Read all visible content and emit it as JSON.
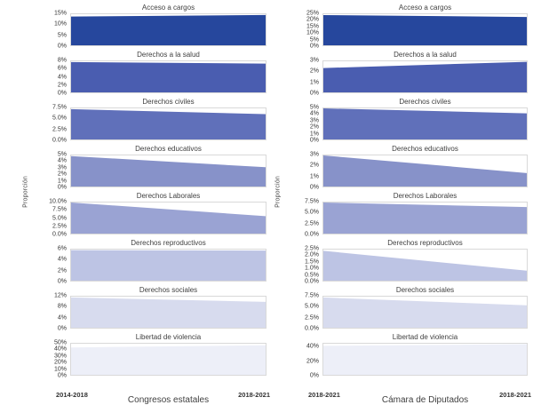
{
  "chart_data": {
    "type": "area",
    "description": "Small-multiple area charts of proportion of initiatives by rights topic, two legislature columns",
    "ylabel": "Proporción",
    "columns": [
      {
        "title": "Congresos estatales",
        "x_labels": [
          "2014-2018",
          "2018-2021"
        ],
        "ylabel": "Proporción",
        "panels": [
          {
            "title": "Acceso a cargos",
            "ylim": [
              0,
              15
            ],
            "yticks": [
              {
                "label": "15%",
                "value": 15
              },
              {
                "label": "10%",
                "value": 10
              },
              {
                "label": "5%",
                "value": 5
              },
              {
                "label": "0%",
                "value": 0
              }
            ],
            "values": [
              13.9,
              14.6
            ],
            "color": "#26479D"
          },
          {
            "title": "Derechos a la salud",
            "ylim": [
              0,
              8
            ],
            "yticks": [
              {
                "label": "8%",
                "value": 8
              },
              {
                "label": "6%",
                "value": 6
              },
              {
                "label": "4%",
                "value": 4
              },
              {
                "label": "2%",
                "value": 2
              },
              {
                "label": "0%",
                "value": 0
              }
            ],
            "values": [
              7.8,
              7.4
            ],
            "color": "#4A5DB0"
          },
          {
            "title": "Derechos civiles",
            "ylim": [
              0,
              7.5
            ],
            "yticks": [
              {
                "label": "7.5%",
                "value": 7.5
              },
              {
                "label": "5.0%",
                "value": 5
              },
              {
                "label": "2.5%",
                "value": 2.5
              },
              {
                "label": "0.0%",
                "value": 0
              }
            ],
            "values": [
              7.3,
              6.1
            ],
            "color": "#6070BA"
          },
          {
            "title": "Derechos educativos",
            "ylim": [
              0,
              5
            ],
            "yticks": [
              {
                "label": "5%",
                "value": 5
              },
              {
                "label": "4%",
                "value": 4
              },
              {
                "label": "3%",
                "value": 3
              },
              {
                "label": "2%",
                "value": 2
              },
              {
                "label": "1%",
                "value": 1
              },
              {
                "label": "0%",
                "value": 0
              }
            ],
            "values": [
              4.9,
              3.1
            ],
            "color": "#8792C9"
          },
          {
            "title": "Derechos Laborales",
            "ylim": [
              0,
              10
            ],
            "yticks": [
              {
                "label": "10.0%",
                "value": 10
              },
              {
                "label": "7.5%",
                "value": 7.5
              },
              {
                "label": "5.0%",
                "value": 5
              },
              {
                "label": "2.5%",
                "value": 2.5
              },
              {
                "label": "0.0%",
                "value": 0
              }
            ],
            "values": [
              10.0,
              5.6
            ],
            "color": "#9AA3D3"
          },
          {
            "title": "Derechos reproductivos",
            "ylim": [
              0,
              6
            ],
            "yticks": [
              {
                "label": "6%",
                "value": 6
              },
              {
                "label": "4%",
                "value": 4
              },
              {
                "label": "2%",
                "value": 2
              },
              {
                "label": "0%",
                "value": 0
              }
            ],
            "values": [
              5.9,
              5.8
            ],
            "color": "#BDC4E4"
          },
          {
            "title": "Derechos sociales",
            "ylim": [
              0,
              12
            ],
            "yticks": [
              {
                "label": "12%",
                "value": 12
              },
              {
                "label": "8%",
                "value": 8
              },
              {
                "label": "4%",
                "value": 4
              },
              {
                "label": "0%",
                "value": 0
              }
            ],
            "values": [
              11.7,
              10.0
            ],
            "color": "#D7DBEE"
          },
          {
            "title": "Libertad de violencia",
            "ylim": [
              0,
              50
            ],
            "yticks": [
              {
                "label": "50%",
                "value": 50
              },
              {
                "label": "40%",
                "value": 40
              },
              {
                "label": "30%",
                "value": 30
              },
              {
                "label": "20%",
                "value": 20
              },
              {
                "label": "10%",
                "value": 10
              },
              {
                "label": "0%",
                "value": 0
              }
            ],
            "values": [
              44.0,
              47.5
            ],
            "color": "#EDEFF8"
          }
        ]
      },
      {
        "title": "Cámara de Diputados",
        "x_labels": [
          "2018-2021",
          "2018-2021"
        ],
        "ylabel": "Proporción",
        "panels": [
          {
            "title": "Acceso a cargos",
            "ylim": [
              0,
              25
            ],
            "yticks": [
              {
                "label": "25%",
                "value": 25
              },
              {
                "label": "20%",
                "value": 20
              },
              {
                "label": "15%",
                "value": 15
              },
              {
                "label": "10%",
                "value": 10
              },
              {
                "label": "5%",
                "value": 5
              },
              {
                "label": "0%",
                "value": 0
              }
            ],
            "values": [
              24.3,
              22.8
            ],
            "color": "#26479D"
          },
          {
            "title": "Derechos a la salud",
            "ylim": [
              0,
              3
            ],
            "yticks": [
              {
                "label": "3%",
                "value": 3
              },
              {
                "label": "2%",
                "value": 2
              },
              {
                "label": "1%",
                "value": 1
              },
              {
                "label": "0%",
                "value": 0
              }
            ],
            "values": [
              2.35,
              2.95
            ],
            "color": "#4A5DB0"
          },
          {
            "title": "Derechos civiles",
            "ylim": [
              0,
              5
            ],
            "yticks": [
              {
                "label": "5%",
                "value": 5
              },
              {
                "label": "4%",
                "value": 4
              },
              {
                "label": "3%",
                "value": 3
              },
              {
                "label": "2%",
                "value": 2
              },
              {
                "label": "1%",
                "value": 1
              },
              {
                "label": "0%",
                "value": 0
              }
            ],
            "values": [
              5.0,
              4.2
            ],
            "color": "#6070BA"
          },
          {
            "title": "Derechos educativos",
            "ylim": [
              0,
              3
            ],
            "yticks": [
              {
                "label": "3%",
                "value": 3
              },
              {
                "label": "2%",
                "value": 2
              },
              {
                "label": "1%",
                "value": 1
              },
              {
                "label": "0%",
                "value": 0
              }
            ],
            "values": [
              3.0,
              1.3
            ],
            "color": "#8792C9"
          },
          {
            "title": "Derechos Laborales",
            "ylim": [
              0,
              7.5
            ],
            "yticks": [
              {
                "label": "7.5%",
                "value": 7.5
              },
              {
                "label": "5.0%",
                "value": 5
              },
              {
                "label": "2.5%",
                "value": 2.5
              },
              {
                "label": "0.0%",
                "value": 0
              }
            ],
            "values": [
              7.5,
              6.4
            ],
            "color": "#9AA3D3"
          },
          {
            "title": "Derechos reproductivos",
            "ylim": [
              0,
              2.5
            ],
            "yticks": [
              {
                "label": "2.5%",
                "value": 2.5
              },
              {
                "label": "2.0%",
                "value": 2
              },
              {
                "label": "1.5%",
                "value": 1.5
              },
              {
                "label": "1.0%",
                "value": 1
              },
              {
                "label": "0.5%",
                "value": 0.5
              },
              {
                "label": "0.0%",
                "value": 0
              }
            ],
            "values": [
              2.4,
              0.8
            ],
            "color": "#BDC4E4"
          },
          {
            "title": "Derechos sociales",
            "ylim": [
              0,
              7.5
            ],
            "yticks": [
              {
                "label": "7.5%",
                "value": 7.5
              },
              {
                "label": "5.0%",
                "value": 5
              },
              {
                "label": "2.5%",
                "value": 2.5
              },
              {
                "label": "0.0%",
                "value": 0
              }
            ],
            "values": [
              7.3,
              5.4
            ],
            "color": "#D7DBEE"
          },
          {
            "title": "Libertad de violencia",
            "ylim": [
              0,
              45
            ],
            "yticks": [
              {
                "label": "40%",
                "value": 40
              },
              {
                "label": "20%",
                "value": 20
              },
              {
                "label": "0%",
                "value": 0
              }
            ],
            "values": [
              42.0,
              44.3
            ],
            "color": "#EDEFF8"
          }
        ]
      }
    ]
  }
}
